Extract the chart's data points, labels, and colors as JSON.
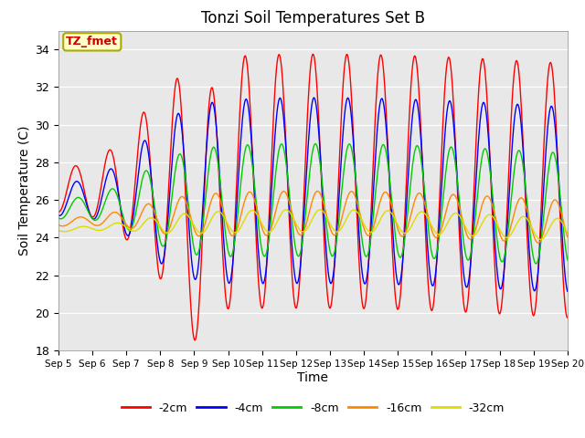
{
  "title": "Tonzi Soil Temperatures Set B",
  "xlabel": "Time",
  "ylabel": "Soil Temperature (C)",
  "ylim": [
    18,
    35
  ],
  "bg_color": "#e8e8e8",
  "fig_color": "#ffffff",
  "annotation_text": "TZ_fmet",
  "annotation_bg": "#ffffcc",
  "annotation_border": "#aaaa00",
  "annotation_text_color": "#cc0000",
  "series_order": [
    "-2cm",
    "-4cm",
    "-8cm",
    "-16cm",
    "-32cm"
  ],
  "series": {
    "-2cm": {
      "color": "#ff0000",
      "mean": 26.5,
      "amp_base": 5.2,
      "phase_lag": 0.0
    },
    "-4cm": {
      "color": "#0000ff",
      "mean": 26.0,
      "amp_base": 3.8,
      "phase_lag": 0.18
    },
    "-8cm": {
      "color": "#00cc00",
      "mean": 25.5,
      "amp_base": 2.3,
      "phase_lag": 0.45
    },
    "-16cm": {
      "color": "#ff8800",
      "mean": 24.8,
      "amp_base": 0.9,
      "phase_lag": 0.85
    },
    "-32cm": {
      "color": "#dddd00",
      "mean": 24.4,
      "amp_base": 0.45,
      "phase_lag": 1.3
    }
  },
  "tick_labels": [
    "Sep 5",
    "Sep 6",
    "Sep 7",
    "Sep 8",
    "Sep 9",
    "Sep 10",
    "Sep 11",
    "Sep 12",
    "Sep 13",
    "Sep 14",
    "Sep 15",
    "Sep 16",
    "Sep 17",
    "Sep 18",
    "Sep 19",
    "Sep 20"
  ],
  "yticks": [
    18,
    20,
    22,
    24,
    26,
    28,
    30,
    32,
    34
  ],
  "n_days": 15,
  "pts_per_day": 48
}
